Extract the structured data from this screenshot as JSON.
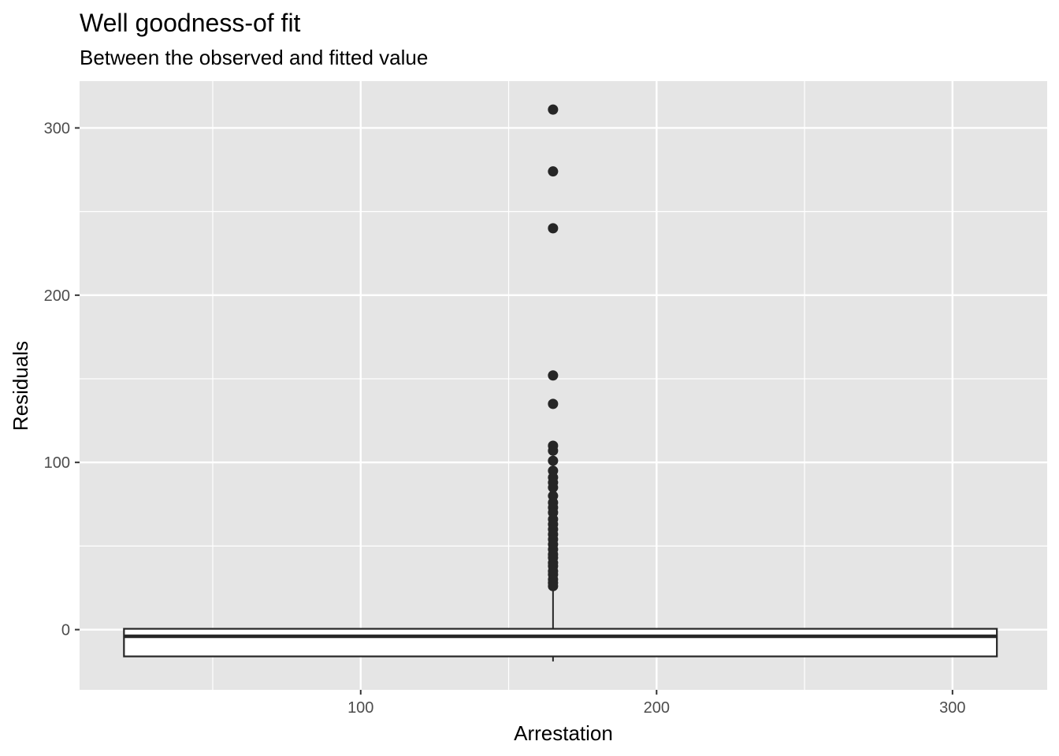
{
  "chart_data": {
    "type": "boxplot",
    "title": "Well goodness-of fit",
    "subtitle": "Between the observed and fitted value",
    "xlabel": "Arrestation",
    "ylabel": "Residuals",
    "xlim": [
      5,
      332
    ],
    "ylim": [
      -36,
      328
    ],
    "x_ticks": [
      100,
      200,
      300
    ],
    "y_ticks": [
      0,
      100,
      200,
      300
    ],
    "grid": true,
    "panel_background": "#e5e5e5",
    "grid_color": "#ffffff",
    "mark_color": "#262626",
    "box": {
      "x_center": 165,
      "x_min": 20,
      "x_max": 315,
      "q1": -16,
      "median": -4,
      "q3": 0.5,
      "whisker_low": -19,
      "whisker_high": 26
    },
    "outliers": [
      311,
      274,
      240,
      152,
      135,
      110,
      107,
      101,
      95,
      91,
      88,
      85,
      80,
      76,
      73,
      70,
      66,
      63,
      60,
      57,
      54,
      51,
      48,
      45,
      43,
      40,
      38,
      35,
      33,
      30,
      28,
      26
    ]
  }
}
